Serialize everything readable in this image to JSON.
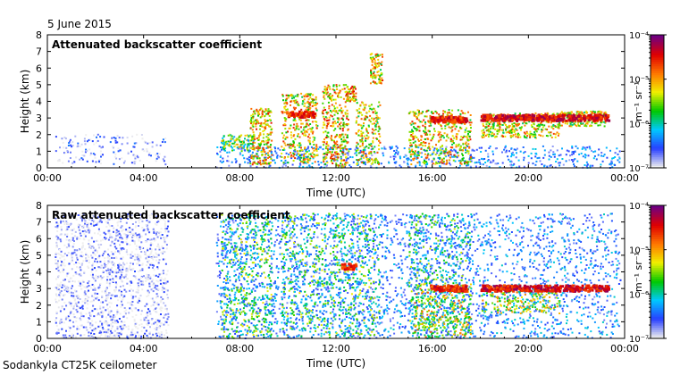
{
  "date_label": "5 June 2015",
  "footer_label": "Sodankyla CT25K ceilometer",
  "chart_data": [
    {
      "type": "heatmap",
      "title": "Attenuated backscatter coefficient",
      "xlabel": "Time (UTC)",
      "ylabel": "Height (km)",
      "xlim": [
        0,
        24
      ],
      "ylim": [
        0,
        8
      ],
      "xticks": [
        "00:00",
        "04:00",
        "08:00",
        "12:00",
        "16:00",
        "20:00",
        "00:00"
      ],
      "yticks": [
        "0",
        "1",
        "2",
        "3",
        "4",
        "5",
        "6",
        "7",
        "8"
      ],
      "colorbar": {
        "label": "m⁻¹ sr⁻¹",
        "ticks": [
          "10⁻⁷",
          "10⁻⁶",
          "10⁻⁵",
          "10⁻⁴"
        ],
        "log_range": [
          -7,
          -4
        ],
        "colors": [
          "#eeeeee",
          "#2840ff",
          "#00c8ff",
          "#00c800",
          "#f0f000",
          "#ff7800",
          "#e00000",
          "#700080"
        ]
      },
      "features": [
        {
          "kind": "sparse_noise",
          "t0": 0.3,
          "t1": 4.9,
          "h0": 0.2,
          "h1": 2.0,
          "n": 170,
          "level": 0.08
        },
        {
          "kind": "sparse_noise",
          "t0": 7.0,
          "t1": 23.8,
          "h0": 0.0,
          "h1": 1.3,
          "n": 650,
          "level": 0.18
        },
        {
          "kind": "layer",
          "t0": 7.2,
          "t1": 8.6,
          "h0": 1.0,
          "h1": 2.0,
          "n": 120,
          "level": 0.45
        },
        {
          "kind": "layer",
          "t0": 8.4,
          "t1": 9.3,
          "h0": 0.2,
          "h1": 3.6,
          "n": 230,
          "level": 0.62
        },
        {
          "kind": "layer",
          "t0": 9.7,
          "t1": 11.2,
          "h0": 0.3,
          "h1": 4.5,
          "n": 330,
          "level": 0.6
        },
        {
          "kind": "layer",
          "t0": 11.4,
          "t1": 12.5,
          "h0": 0.0,
          "h1": 5.0,
          "n": 320,
          "level": 0.62
        },
        {
          "kind": "layer",
          "t0": 12.4,
          "t1": 12.8,
          "h0": 4.0,
          "h1": 4.9,
          "n": 60,
          "level": 0.66
        },
        {
          "kind": "layer",
          "t0": 12.8,
          "t1": 13.8,
          "h0": 0.2,
          "h1": 4.0,
          "n": 200,
          "level": 0.58
        },
        {
          "kind": "layer",
          "t0": 13.4,
          "t1": 13.9,
          "h0": 5.0,
          "h1": 6.9,
          "n": 90,
          "level": 0.6
        },
        {
          "kind": "layer",
          "t0": 15.0,
          "t1": 17.6,
          "h0": 0.2,
          "h1": 3.5,
          "n": 420,
          "level": 0.6
        },
        {
          "kind": "layer",
          "t0": 18.0,
          "t1": 21.3,
          "h0": 1.8,
          "h1": 3.3,
          "n": 360,
          "level": 0.58
        },
        {
          "kind": "layer",
          "t0": 21.3,
          "t1": 23.2,
          "h0": 2.5,
          "h1": 3.4,
          "n": 200,
          "level": 0.55
        },
        {
          "kind": "cloud_line",
          "t0": 18.0,
          "t1": 23.3,
          "h": 3.0,
          "n": 340,
          "level": 0.86
        },
        {
          "kind": "cloud_line",
          "t0": 15.9,
          "t1": 17.4,
          "h": 2.9,
          "n": 110,
          "level": 0.82
        },
        {
          "kind": "cloud_line",
          "t0": 9.9,
          "t1": 11.1,
          "h": 3.2,
          "n": 70,
          "level": 0.8
        }
      ]
    },
    {
      "type": "heatmap",
      "title": "Raw attenuated backscatter coefficient",
      "xlabel": "Time (UTC)",
      "ylabel": "Height (km)",
      "xlim": [
        0,
        24
      ],
      "ylim": [
        0,
        8
      ],
      "xticks": [
        "00:00",
        "04:00",
        "08:00",
        "12:00",
        "16:00",
        "20:00",
        "00:00"
      ],
      "yticks": [
        "0",
        "1",
        "2",
        "3",
        "4",
        "5",
        "6",
        "7",
        "8"
      ],
      "colorbar": {
        "label": "m⁻¹ sr⁻¹",
        "ticks": [
          "10⁻⁷",
          "10⁻⁶",
          "10⁻⁵",
          "10⁻⁴"
        ],
        "log_range": [
          -7,
          -4
        ],
        "colors": [
          "#eeeeee",
          "#2840ff",
          "#00c8ff",
          "#00c800",
          "#f0f000",
          "#ff7800",
          "#e00000",
          "#700080"
        ]
      },
      "features": [
        {
          "kind": "sparse_noise",
          "t0": 0.3,
          "t1": 5.0,
          "h0": 0.0,
          "h1": 7.5,
          "n": 1500,
          "level": 0.03
        },
        {
          "kind": "sparse_noise",
          "t0": 7.0,
          "t1": 23.8,
          "h0": 0.0,
          "h1": 7.5,
          "n": 2600,
          "level": 0.2
        },
        {
          "kind": "layer",
          "t0": 7.2,
          "t1": 9.3,
          "h0": 0.0,
          "h1": 7.5,
          "n": 500,
          "level": 0.38
        },
        {
          "kind": "layer",
          "t0": 9.7,
          "t1": 13.8,
          "h0": 0.0,
          "h1": 7.5,
          "n": 800,
          "level": 0.36
        },
        {
          "kind": "layer",
          "t0": 15.0,
          "t1": 17.6,
          "h0": 0.0,
          "h1": 7.5,
          "n": 520,
          "level": 0.33
        },
        {
          "kind": "layer",
          "t0": 15.2,
          "t1": 17.6,
          "h0": 0.0,
          "h1": 3.3,
          "n": 260,
          "level": 0.55
        },
        {
          "kind": "layer",
          "t0": 18.0,
          "t1": 21.3,
          "h0": 1.5,
          "h1": 3.2,
          "n": 240,
          "level": 0.5
        },
        {
          "kind": "cloud_line",
          "t0": 18.0,
          "t1": 23.3,
          "h": 3.0,
          "n": 320,
          "level": 0.86
        },
        {
          "kind": "cloud_line",
          "t0": 15.9,
          "t1": 17.4,
          "h": 3.0,
          "n": 110,
          "level": 0.82
        },
        {
          "kind": "cloud_line",
          "t0": 12.2,
          "t1": 12.8,
          "h": 4.3,
          "n": 30,
          "level": 0.8
        }
      ]
    }
  ]
}
